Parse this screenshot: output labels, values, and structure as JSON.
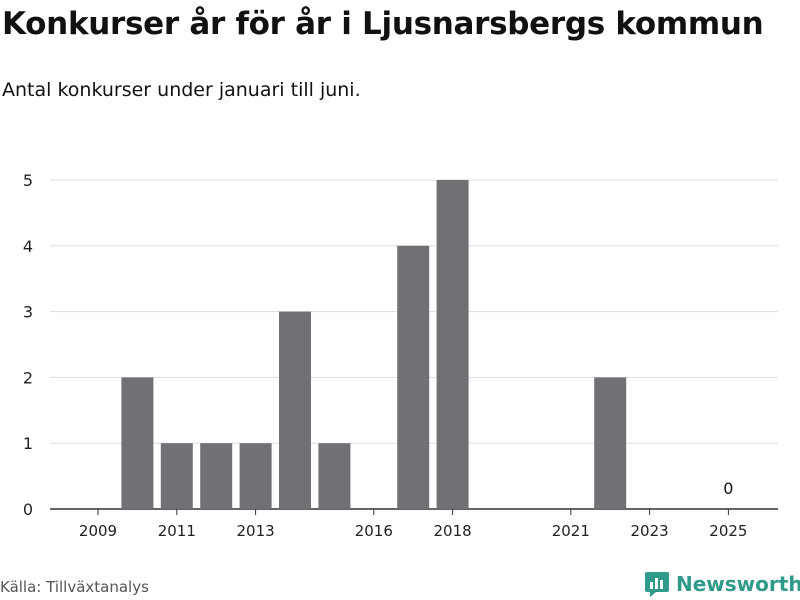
{
  "title": "Konkurser år för år i Ljusnarsbergs kommun",
  "subtitle": "Antal konkurser under januari till juni.",
  "source": "Källa: Tillväxtanalys",
  "brand": {
    "name": "Newsworthy",
    "color": "#2f9a8a",
    "icon": "newsworthy-logo-icon"
  },
  "chart_data": {
    "type": "bar",
    "categories": [
      "2009",
      "2010",
      "2011",
      "2012",
      "2013",
      "2014",
      "2015",
      "2016",
      "2017",
      "2018",
      "2019",
      "2020",
      "2021",
      "2022",
      "2023",
      "2024",
      "2025"
    ],
    "values": [
      null,
      2,
      1,
      1,
      1,
      3,
      1,
      null,
      4,
      5,
      null,
      null,
      null,
      2,
      null,
      null,
      0
    ],
    "x_tick_labels": [
      "2009",
      "2011",
      "2013",
      "2016",
      "2018",
      "2021",
      "2023",
      "2025"
    ],
    "y_ticks": [
      0,
      1,
      2,
      3,
      4,
      5
    ],
    "ylim": [
      0,
      5
    ],
    "bar_color": "#717075",
    "data_labels": [
      {
        "category": "2025",
        "value": 0,
        "text": "0"
      }
    ],
    "grid": true,
    "xlabel": "",
    "ylabel": ""
  }
}
